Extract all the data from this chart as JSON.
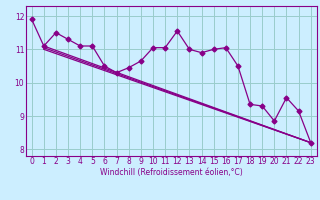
{
  "xlabel": "Windchill (Refroidissement éolien,°C)",
  "bg_color": "#cceeff",
  "line_color": "#880088",
  "grid_color": "#99cccc",
  "xlim": [
    -0.5,
    23.5
  ],
  "ylim": [
    7.8,
    12.3
  ],
  "yticks": [
    8,
    9,
    10,
    11,
    12
  ],
  "xticks": [
    0,
    1,
    2,
    3,
    4,
    5,
    6,
    7,
    8,
    9,
    10,
    11,
    12,
    13,
    14,
    15,
    16,
    17,
    18,
    19,
    20,
    21,
    22,
    23
  ],
  "data_series": [
    11.9,
    11.1,
    11.5,
    11.3,
    11.1,
    11.1,
    10.5,
    10.3,
    10.45,
    10.65,
    11.05,
    11.05,
    11.55,
    11.0,
    10.9,
    11.0,
    11.05,
    10.5,
    9.35,
    9.3,
    8.85,
    9.55,
    9.15,
    8.2
  ],
  "trend1_start": 11.1,
  "trend1_end": 8.2,
  "trend2_start": 11.05,
  "trend2_end": 8.2,
  "trend3_start": 11.0,
  "trend3_end": 8.2,
  "marker_size": 2.5,
  "line_width": 0.9,
  "tick_fontsize": 5.5,
  "xlabel_fontsize": 5.5
}
